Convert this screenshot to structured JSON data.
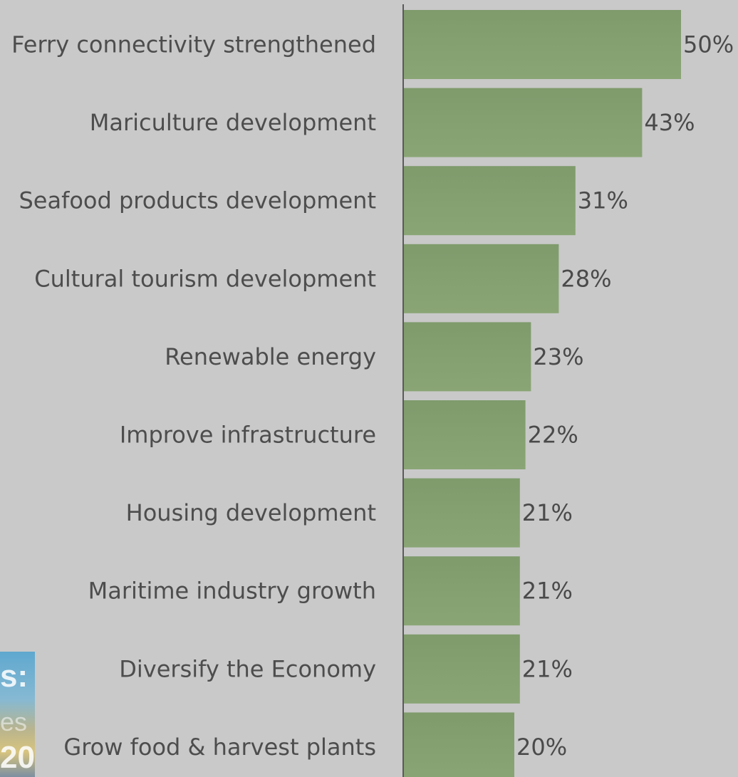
{
  "chart_data": {
    "type": "bar",
    "orientation": "horizontal",
    "title": "",
    "xlabel": "",
    "ylabel": "",
    "xlim": [
      0,
      50
    ],
    "value_suffix": "%",
    "grid": false,
    "categories": [
      "Ferry connectivity strengthened",
      "Mariculture development",
      "Seafood products development",
      "Cultural tourism development",
      "Renewable energy",
      "Improve infrastructure",
      "Housing development",
      "Maritime industry growth",
      "Diversify the Economy",
      "Grow food & harvest plants"
    ],
    "values": [
      50,
      43,
      31,
      28,
      23,
      22,
      21,
      21,
      21,
      20
    ],
    "value_labels": [
      "50%",
      "43%",
      "31%",
      "28%",
      "23%",
      "22%",
      "21%",
      "21%",
      "21%",
      "20%"
    ],
    "colors": {
      "bar": "#8aa575",
      "bar_top": "#7f9b6c",
      "background": "#c9c9c9",
      "axis": "#5a5a5a"
    }
  },
  "corner_image": {
    "description_icon": "partial-slide-thumbnail",
    "text_1": "s:",
    "text_2": "es",
    "text_3": "20"
  }
}
